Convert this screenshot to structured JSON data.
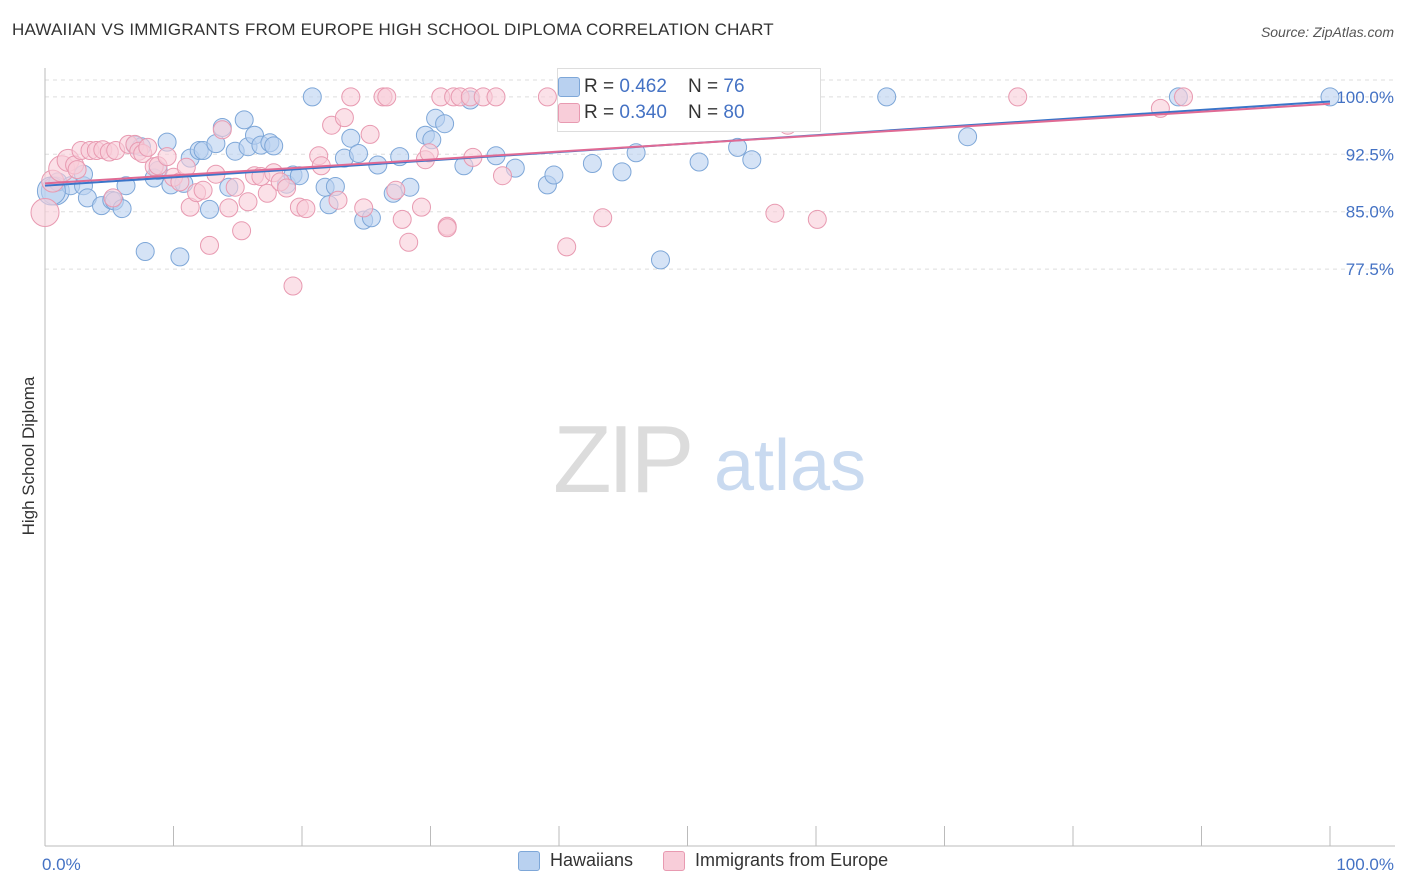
{
  "title": "HAWAIIAN VS IMMIGRANTS FROM EUROPE HIGH SCHOOL DIPLOMA CORRELATION CHART",
  "source": "Source: ZipAtlas.com",
  "watermark": {
    "zip": "ZIP",
    "atlas": "atlas"
  },
  "legend": {
    "rows": [
      {
        "r_label": "R = ",
        "r_value": "0.462",
        "n_label": "N = ",
        "n_value": "76"
      },
      {
        "r_label": "R = ",
        "r_value": "0.340",
        "n_label": "N = ",
        "n_value": "80"
      }
    ],
    "bottom": [
      "Hawaiians",
      "Immigrants from Europe"
    ]
  },
  "colors": {
    "blue_fill": "#b9d1f0",
    "blue_stroke": "#7ea7d8",
    "blue_line": "#3a75c9",
    "pink_fill": "#f8cdd9",
    "pink_stroke": "#e89ab1",
    "pink_line": "#e06a94",
    "tick_label": "#4472c4"
  },
  "chart_data": {
    "type": "scatter",
    "title": "HAWAIIAN VS IMMIGRANTS FROM EUROPE HIGH SCHOOL DIPLOMA CORRELATION CHART",
    "xlabel": "",
    "ylabel": "High School Diploma",
    "xlim": [
      0,
      100
    ],
    "ylim": [
      70.0,
      100.6
    ],
    "x_tick_labels": [
      "0.0%",
      "100.0%"
    ],
    "y_ticks": [
      77.5,
      85.0,
      92.5,
      100.0
    ],
    "y_tick_labels": [
      "77.5%",
      "85.0%",
      "92.5%",
      "100.0%"
    ],
    "grid": true,
    "series": [
      {
        "name": "Hawaiians",
        "color": "#b9d1f0",
        "trend": [
          [
            0,
            88.4
          ],
          [
            100,
            99.4
          ]
        ],
        "points": [
          [
            0.8,
            87.7,
            14
          ],
          [
            1.0,
            88.9,
            9
          ],
          [
            2.0,
            88.4,
            9
          ],
          [
            3.0,
            88.4,
            9
          ],
          [
            3.0,
            89.9,
            9
          ],
          [
            3.3,
            86.8,
            9
          ],
          [
            4.4,
            85.8,
            9
          ],
          [
            5.2,
            86.5,
            9
          ],
          [
            5.4,
            86.4,
            9
          ],
          [
            6.0,
            85.4,
            9
          ],
          [
            6.3,
            88.4,
            9
          ],
          [
            7.0,
            93.7,
            9
          ],
          [
            7.5,
            93.5,
            9
          ],
          [
            7.8,
            79.8,
            9
          ],
          [
            8.5,
            89.4,
            9
          ],
          [
            8.8,
            90.4,
            9
          ],
          [
            9.5,
            94.1,
            9
          ],
          [
            9.8,
            88.5,
            9
          ],
          [
            10.5,
            79.1,
            9
          ],
          [
            10.8,
            88.7,
            9
          ],
          [
            11.3,
            92.0,
            9
          ],
          [
            12.0,
            93.0,
            9
          ],
          [
            12.3,
            93.0,
            9
          ],
          [
            12.8,
            85.3,
            9
          ],
          [
            13.3,
            93.9,
            9
          ],
          [
            13.8,
            96.0,
            9
          ],
          [
            14.3,
            88.2,
            9
          ],
          [
            14.8,
            92.9,
            9
          ],
          [
            15.5,
            97.0,
            9
          ],
          [
            15.8,
            93.5,
            9
          ],
          [
            16.3,
            95.0,
            9
          ],
          [
            16.8,
            93.7,
            9
          ],
          [
            17.5,
            94.0,
            9
          ],
          [
            17.8,
            93.6,
            9
          ],
          [
            18.8,
            88.6,
            9
          ],
          [
            19.3,
            89.8,
            9
          ],
          [
            19.8,
            89.7,
            9
          ],
          [
            20.8,
            100.0,
            9
          ],
          [
            21.8,
            88.2,
            9
          ],
          [
            22.1,
            85.9,
            9
          ],
          [
            22.6,
            88.3,
            9
          ],
          [
            23.3,
            92.0,
            9
          ],
          [
            23.8,
            94.6,
            9
          ],
          [
            24.4,
            92.6,
            9
          ],
          [
            24.8,
            83.9,
            9
          ],
          [
            25.4,
            84.2,
            9
          ],
          [
            25.9,
            91.1,
            9
          ],
          [
            27.1,
            87.4,
            9
          ],
          [
            27.6,
            92.2,
            9
          ],
          [
            28.4,
            88.2,
            9
          ],
          [
            29.6,
            95.0,
            9
          ],
          [
            30.1,
            94.4,
            9
          ],
          [
            30.4,
            97.2,
            9
          ],
          [
            31.1,
            96.5,
            9
          ],
          [
            32.6,
            91.0,
            9
          ],
          [
            33.1,
            99.6,
            9
          ],
          [
            35.1,
            92.3,
            9
          ],
          [
            36.6,
            90.7,
            9
          ],
          [
            39.1,
            88.5,
            9
          ],
          [
            39.6,
            89.8,
            9
          ],
          [
            42.6,
            91.3,
            9
          ],
          [
            44.7,
            97.5,
            9
          ],
          [
            44.9,
            90.2,
            9
          ],
          [
            46.0,
            92.7,
            9
          ],
          [
            47.9,
            78.7,
            9
          ],
          [
            49.7,
            97.5,
            9
          ],
          [
            50.7,
            100.0,
            9
          ],
          [
            50.9,
            100.0,
            9
          ],
          [
            50.9,
            91.5,
            9
          ],
          [
            53.9,
            93.4,
            9
          ],
          [
            55.0,
            91.8,
            9
          ],
          [
            65.5,
            100.0,
            9
          ],
          [
            71.8,
            94.8,
            9
          ],
          [
            88.2,
            100.0,
            9
          ],
          [
            100.0,
            100.0,
            9
          ],
          [
            0.5,
            87.7,
            14
          ]
        ]
      },
      {
        "name": "Immigrants from Europe",
        "color": "#f8cdd9",
        "trend": [
          [
            0,
            88.7
          ],
          [
            100,
            99.1
          ]
        ],
        "points": [
          [
            0.0,
            84.9,
            14
          ],
          [
            0.6,
            89.0,
            11
          ],
          [
            1.3,
            90.6,
            13
          ],
          [
            1.8,
            91.7,
            11
          ],
          [
            2.3,
            91.1,
            9
          ],
          [
            2.5,
            90.5,
            9
          ],
          [
            2.8,
            93.0,
            9
          ],
          [
            3.5,
            93.0,
            9
          ],
          [
            4.0,
            93.0,
            9
          ],
          [
            4.5,
            93.1,
            9
          ],
          [
            5.0,
            92.8,
            9
          ],
          [
            5.5,
            93.0,
            9
          ],
          [
            5.3,
            86.8,
            9
          ],
          [
            6.5,
            93.8,
            9
          ],
          [
            7.0,
            93.8,
            9
          ],
          [
            7.3,
            92.9,
            9
          ],
          [
            7.6,
            92.6,
            9
          ],
          [
            8.0,
            93.4,
            9
          ],
          [
            8.5,
            90.9,
            9
          ],
          [
            8.8,
            91.0,
            9
          ],
          [
            9.5,
            92.2,
            9
          ],
          [
            10.0,
            89.5,
            9
          ],
          [
            10.5,
            88.9,
            9
          ],
          [
            11.0,
            90.8,
            9
          ],
          [
            11.3,
            85.6,
            9
          ],
          [
            11.8,
            87.5,
            9
          ],
          [
            12.3,
            87.8,
            9
          ],
          [
            12.8,
            80.6,
            9
          ],
          [
            13.3,
            89.9,
            9
          ],
          [
            13.8,
            95.7,
            9
          ],
          [
            14.3,
            85.5,
            9
          ],
          [
            14.8,
            88.2,
            9
          ],
          [
            15.3,
            82.5,
            9
          ],
          [
            15.8,
            86.3,
            9
          ],
          [
            16.3,
            89.7,
            9
          ],
          [
            16.8,
            89.6,
            9
          ],
          [
            17.3,
            87.4,
            9
          ],
          [
            17.8,
            90.1,
            9
          ],
          [
            18.3,
            88.9,
            9
          ],
          [
            18.8,
            88.1,
            9
          ],
          [
            19.3,
            75.3,
            9
          ],
          [
            19.8,
            85.6,
            9
          ],
          [
            20.3,
            85.4,
            9
          ],
          [
            21.3,
            92.3,
            9
          ],
          [
            21.5,
            91.0,
            9
          ],
          [
            22.3,
            96.3,
            9
          ],
          [
            22.8,
            86.5,
            9
          ],
          [
            23.3,
            97.3,
            9
          ],
          [
            23.8,
            100.0,
            9
          ],
          [
            24.8,
            85.5,
            9
          ],
          [
            25.3,
            95.1,
            9
          ],
          [
            26.3,
            100.0,
            9
          ],
          [
            26.6,
            100.0,
            9
          ],
          [
            27.3,
            87.8,
            9
          ],
          [
            27.8,
            84.0,
            9
          ],
          [
            28.3,
            81.0,
            9
          ],
          [
            29.3,
            85.6,
            9
          ],
          [
            29.6,
            91.8,
            9
          ],
          [
            29.9,
            92.7,
            9
          ],
          [
            30.8,
            100.0,
            9
          ],
          [
            31.3,
            83.1,
            9
          ],
          [
            31.3,
            82.9,
            9
          ],
          [
            31.8,
            100.0,
            9
          ],
          [
            32.3,
            100.0,
            9
          ],
          [
            33.1,
            100.0,
            9
          ],
          [
            33.3,
            92.1,
            9
          ],
          [
            34.1,
            100.0,
            9
          ],
          [
            35.1,
            100.0,
            9
          ],
          [
            35.6,
            89.7,
            9
          ],
          [
            39.1,
            100.0,
            9
          ],
          [
            40.6,
            80.4,
            9
          ],
          [
            43.4,
            84.2,
            9
          ],
          [
            47.9,
            100.0,
            9
          ],
          [
            49.1,
            100.0,
            9
          ],
          [
            56.8,
            84.8,
            9
          ],
          [
            57.8,
            96.3,
            9
          ],
          [
            60.1,
            84.0,
            9
          ],
          [
            75.7,
            100.0,
            9
          ],
          [
            86.8,
            98.5,
            9
          ],
          [
            88.6,
            100.0,
            9
          ]
        ]
      }
    ]
  }
}
